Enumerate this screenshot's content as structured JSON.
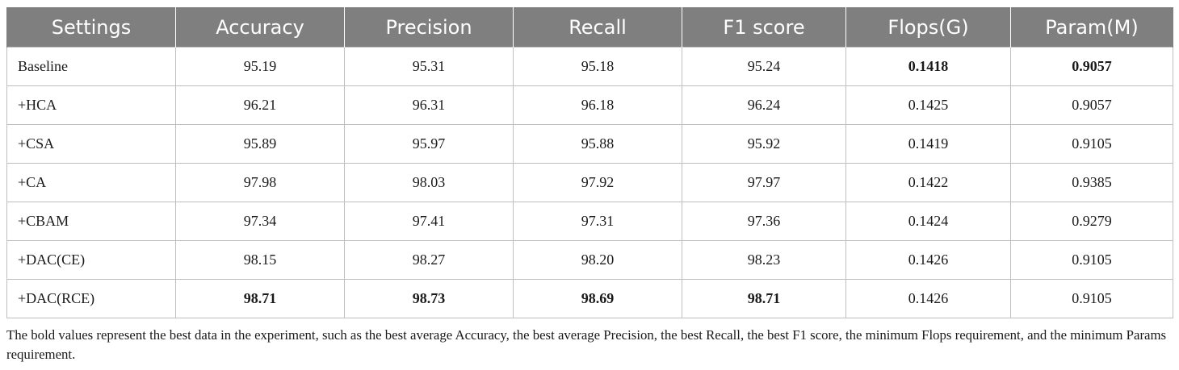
{
  "table": {
    "headers": [
      "Settings",
      "Accuracy",
      "Precision",
      "Recall",
      "F1 score",
      "Flops(G)",
      "Param(M)"
    ],
    "rows": [
      {
        "cells": [
          "Baseline",
          "95.19",
          "95.31",
          "95.18",
          "95.24",
          "0.1418",
          "0.9057"
        ],
        "bold": [
          false,
          false,
          false,
          false,
          false,
          true,
          true
        ]
      },
      {
        "cells": [
          "+HCA",
          "96.21",
          "96.31",
          "96.18",
          "96.24",
          "0.1425",
          "0.9057"
        ],
        "bold": [
          false,
          false,
          false,
          false,
          false,
          false,
          false
        ]
      },
      {
        "cells": [
          "+CSA",
          "95.89",
          "95.97",
          "95.88",
          "95.92",
          "0.1419",
          "0.9105"
        ],
        "bold": [
          false,
          false,
          false,
          false,
          false,
          false,
          false
        ]
      },
      {
        "cells": [
          "+CA",
          "97.98",
          "98.03",
          "97.92",
          "97.97",
          "0.1422",
          "0.9385"
        ],
        "bold": [
          false,
          false,
          false,
          false,
          false,
          false,
          false
        ]
      },
      {
        "cells": [
          "+CBAM",
          "97.34",
          "97.41",
          "97.31",
          "97.36",
          "0.1424",
          "0.9279"
        ],
        "bold": [
          false,
          false,
          false,
          false,
          false,
          false,
          false
        ]
      },
      {
        "cells": [
          "+DAC(CE)",
          "98.15",
          "98.27",
          "98.20",
          "98.23",
          "0.1426",
          "0.9105"
        ],
        "bold": [
          false,
          false,
          false,
          false,
          false,
          false,
          false
        ]
      },
      {
        "cells": [
          "+DAC(RCE)",
          "98.71",
          "98.73",
          "98.69",
          "98.71",
          "0.1426",
          "0.9105"
        ],
        "bold": [
          false,
          true,
          true,
          true,
          true,
          false,
          false
        ]
      }
    ]
  },
  "footnote": "The bold values represent the best data in the experiment, such as the best average Accuracy, the best average Precision, the best Recall, the best F1 score, the minimum Flops requirement, and the minimum Params requirement.",
  "colors": {
    "header_bg": "#7f7f7f",
    "header_text": "#ffffff",
    "grid": "#bfbfbf"
  }
}
